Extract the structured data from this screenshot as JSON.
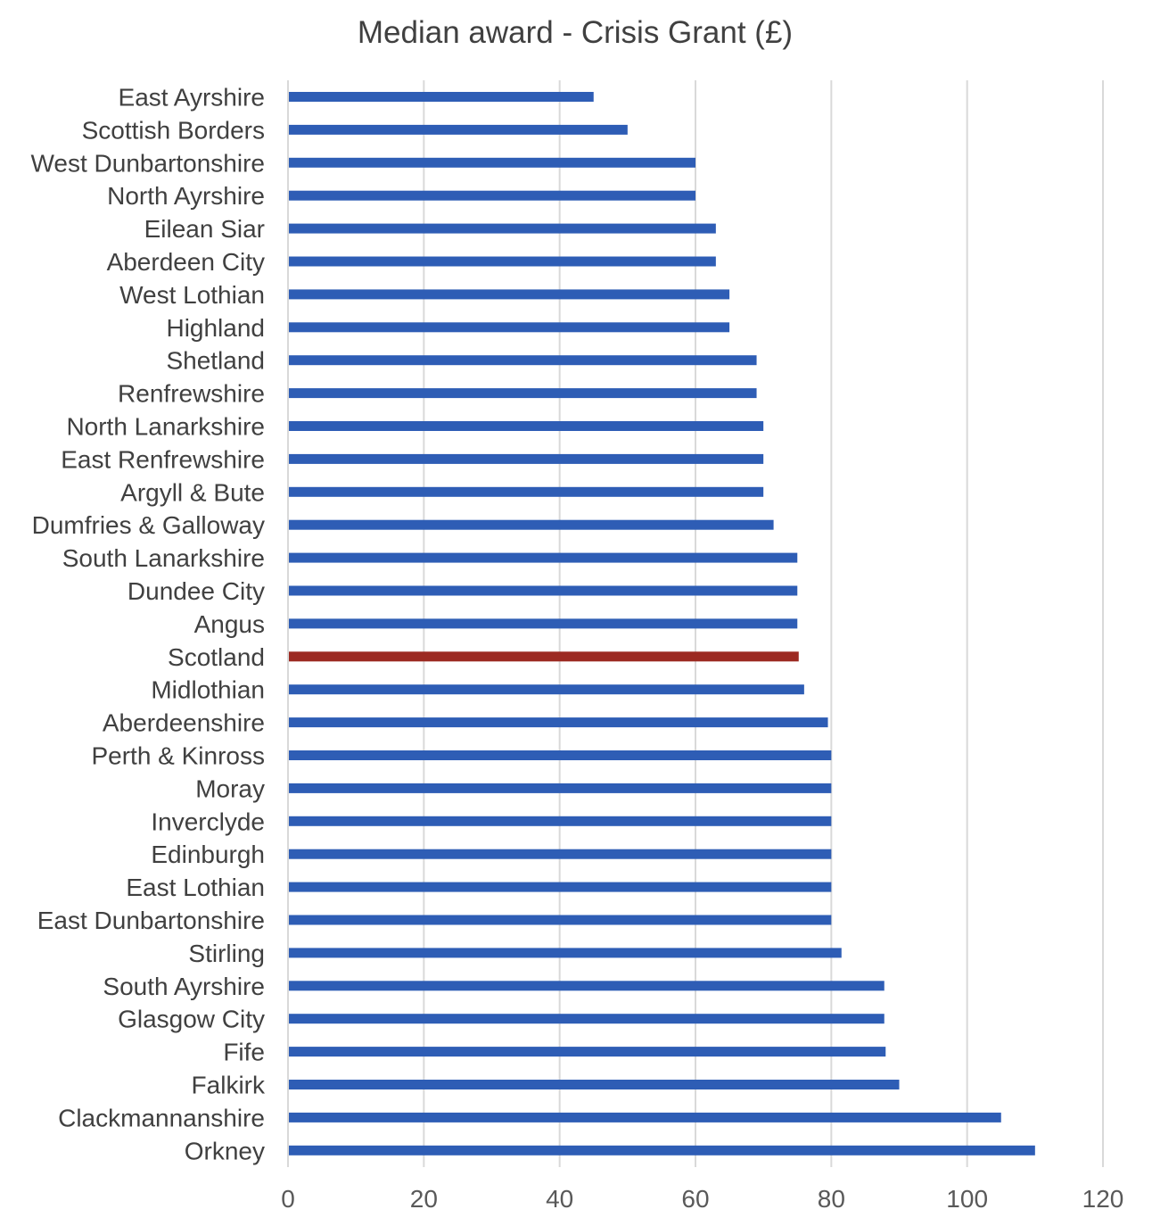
{
  "chart_data": {
    "type": "bar",
    "orientation": "horizontal",
    "title": "Median award - Crisis Grant (£)",
    "xlabel": "",
    "ylabel": "",
    "xlim": [
      0,
      120
    ],
    "xticks": [
      0,
      20,
      40,
      60,
      80,
      100,
      120
    ],
    "grid": "vertical",
    "legend": "none",
    "colors": {
      "default": "#2E5DB5",
      "highlight": "#9C2A22",
      "grid": "#D9D9D9"
    },
    "highlight_category": "Scotland",
    "categories": [
      "East Ayrshire",
      "Scottish Borders",
      "West Dunbartonshire",
      "North Ayrshire",
      "Eilean Siar",
      "Aberdeen City",
      "West Lothian",
      "Highland",
      "Shetland",
      "Renfrewshire",
      "North Lanarkshire",
      "East Renfrewshire",
      "Argyll & Bute",
      "Dumfries & Galloway",
      "South Lanarkshire",
      "Dundee City",
      "Angus",
      "Scotland",
      "Midlothian",
      "Aberdeenshire",
      "Perth & Kinross",
      "Moray",
      "Inverclyde",
      "Edinburgh",
      "East Lothian",
      "East Dunbartonshire",
      "Stirling",
      "South Ayrshire",
      "Glasgow City",
      "Fife",
      "Falkirk",
      "Clackmannanshire",
      "Orkney"
    ],
    "values": [
      45,
      50,
      60,
      60,
      63,
      63,
      65,
      65,
      69,
      69,
      70,
      70,
      70,
      71.5,
      75,
      75,
      75,
      75.2,
      76,
      79.5,
      80,
      80,
      80,
      80,
      80,
      80,
      81.5,
      87.8,
      87.8,
      88,
      90,
      105,
      110
    ]
  }
}
